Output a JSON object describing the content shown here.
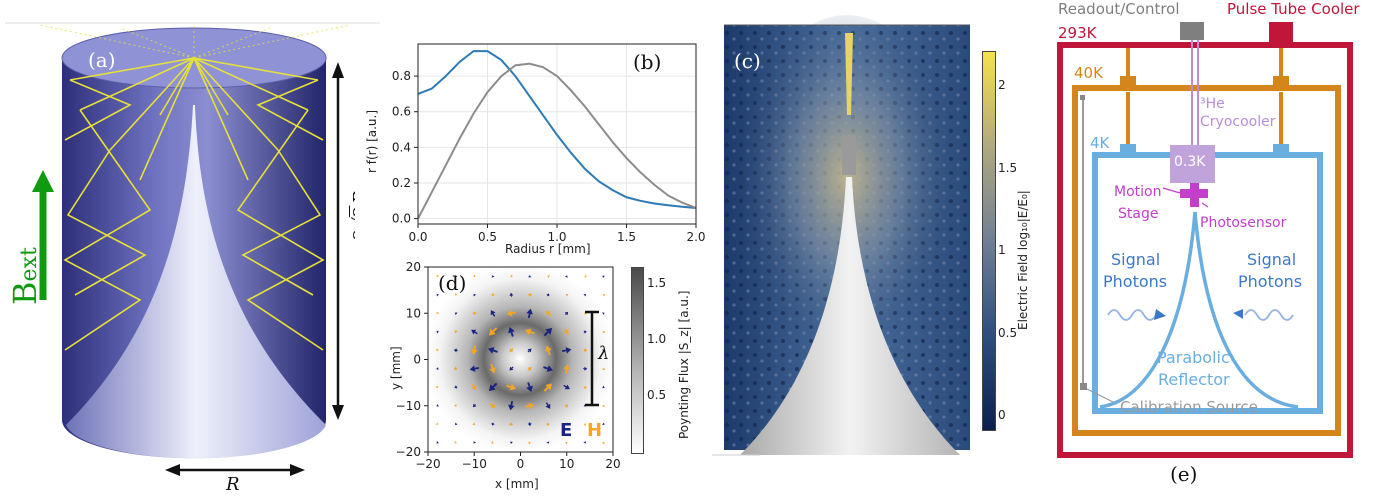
{
  "panel_a": {
    "label": "(a)",
    "height_label_prefix": "2",
    "height_label_sqrt": "2",
    "height_label_var": "R",
    "width_label": "R",
    "field_symbol": "B",
    "field_subscript": "ext"
  },
  "panel_b": {
    "label": "(b)",
    "chart_data": {
      "type": "line",
      "xlabel": "Radius r [mm]",
      "ylabel": "r f(r) [a.u.]",
      "xlim": [
        0,
        2.0
      ],
      "ylim": [
        -0.03,
        0.98
      ],
      "xticks": [
        "0.0",
        "0.5",
        "1.0",
        "1.5",
        "2.0"
      ],
      "yticks": [
        "0.0",
        "0.2",
        "0.4",
        "0.6",
        "0.8"
      ],
      "grid": true,
      "series": [
        {
          "color": "#2c7bb6",
          "x": [
            0,
            0.1,
            0.2,
            0.3,
            0.4,
            0.5,
            0.6,
            0.7,
            0.8,
            0.9,
            1.0,
            1.1,
            1.2,
            1.3,
            1.4,
            1.5,
            1.6,
            1.7,
            1.8,
            1.9,
            2.0
          ],
          "y": [
            0.7,
            0.73,
            0.8,
            0.88,
            0.94,
            0.94,
            0.89,
            0.8,
            0.69,
            0.58,
            0.47,
            0.37,
            0.28,
            0.21,
            0.16,
            0.12,
            0.1,
            0.085,
            0.075,
            0.067,
            0.06
          ]
        },
        {
          "color": "#8c8c8c",
          "x": [
            0,
            0.1,
            0.2,
            0.3,
            0.4,
            0.5,
            0.6,
            0.7,
            0.8,
            0.9,
            1.0,
            1.1,
            1.2,
            1.3,
            1.4,
            1.5,
            1.6,
            1.7,
            1.8,
            1.9,
            2.0
          ],
          "y": [
            0.0,
            0.15,
            0.3,
            0.45,
            0.59,
            0.71,
            0.8,
            0.86,
            0.87,
            0.85,
            0.8,
            0.72,
            0.63,
            0.53,
            0.43,
            0.34,
            0.26,
            0.19,
            0.13,
            0.09,
            0.06
          ]
        }
      ]
    }
  },
  "panel_c": {
    "label": "(c)",
    "colorbar_label": "Electric Field log₁₀|E/E₀|",
    "colorbar_ticks": [
      "2",
      "1.5",
      "1",
      "0.5",
      "0"
    ]
  },
  "panel_d": {
    "label": "(d)",
    "chart_data": {
      "type": "heatmap",
      "xlabel": "x [mm]",
      "ylabel": "y [mm]",
      "xlim": [
        -20,
        20
      ],
      "ylim": [
        -20,
        20
      ],
      "xticks": [
        "−20",
        "−10",
        "0",
        "10",
        "20"
      ],
      "yticks": [
        "20",
        "10",
        "0",
        "−10",
        "−20"
      ],
      "colorbar_label": "Poynting Flux |S_z| [a.u.]",
      "colorbar_ticks": [
        "1.5",
        "1.0",
        "0.5"
      ],
      "colorbar_range": [
        0,
        1.65
      ],
      "ring_radius_mm": 8,
      "wavelength_label": "λ",
      "legend_e": "E",
      "legend_h": "H",
      "e_color": "#1a237e",
      "h_color": "#f5a623"
    }
  },
  "panel_e": {
    "label": "(e)",
    "readout": "Readout/Control",
    "pulse_tube": "Pulse Tube Cooler",
    "t293": "293K",
    "t40": "40K",
    "t4": "4K",
    "he3": "³He",
    "cryocooler": "Cryocooler",
    "t03": "0.3K",
    "motion1": "Motion",
    "motion2": "Stage",
    "photosensor": "Photosensor",
    "signal1": "Signal",
    "photons1": "Photons",
    "signal2": "Signal",
    "photons2": "Photons",
    "parabolic": "Parabolic",
    "reflector": "Reflector",
    "calibration": "Calibration Source",
    "colors": {
      "k293": "#c0163a",
      "k40": "#d4861c",
      "k4": "#6aaee0",
      "readout": "#7f7f7f",
      "cryo": "#b98ed6",
      "stage": "#c23fc9",
      "signal": "#3c78c8"
    }
  }
}
